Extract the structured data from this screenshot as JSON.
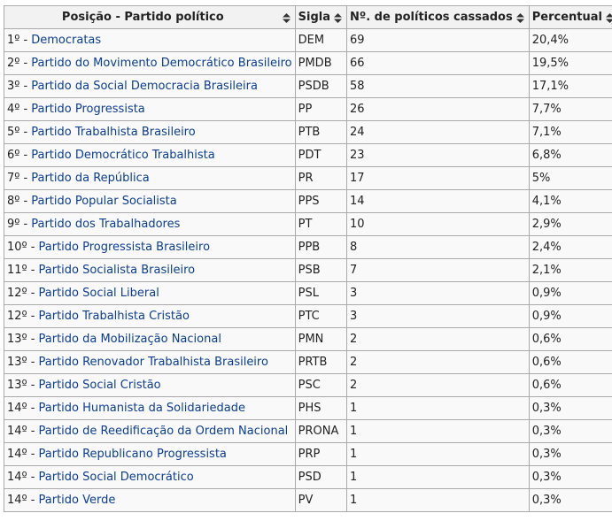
{
  "table": {
    "headers": [
      "Posição - Partido político",
      "Sigla",
      "Nº. de políticos cassados",
      "Percentual"
    ],
    "rows": [
      {
        "rank": "1º -",
        "party": "Democratas",
        "sigla": "DEM",
        "cassados": "69",
        "percentual": "20,4%"
      },
      {
        "rank": "2º -",
        "party": "Partido do Movimento Democrático Brasileiro",
        "sigla": "PMDB",
        "cassados": "66",
        "percentual": "19,5%"
      },
      {
        "rank": "3º -",
        "party": "Partido da Social Democracia Brasileira",
        "sigla": "PSDB",
        "cassados": "58",
        "percentual": "17,1%"
      },
      {
        "rank": "4º -",
        "party": "Partido Progressista",
        "sigla": "PP",
        "cassados": "26",
        "percentual": "7,7%"
      },
      {
        "rank": "5º -",
        "party": "Partido Trabalhista Brasileiro",
        "sigla": "PTB",
        "cassados": "24",
        "percentual": "7,1%"
      },
      {
        "rank": "6º -",
        "party": "Partido Democrático Trabalhista",
        "sigla": "PDT",
        "cassados": "23",
        "percentual": "6,8%"
      },
      {
        "rank": "7º -",
        "party": "Partido da República",
        "sigla": "PR",
        "cassados": "17",
        "percentual": "5%"
      },
      {
        "rank": "8º -",
        "party": "Partido Popular Socialista",
        "sigla": "PPS",
        "cassados": "14",
        "percentual": "4,1%"
      },
      {
        "rank": "9º -",
        "party": "Partido dos Trabalhadores",
        "sigla": "PT",
        "cassados": "10",
        "percentual": "2,9%"
      },
      {
        "rank": "10º -",
        "party": "Partido Progressista Brasileiro",
        "sigla": "PPB",
        "cassados": "8",
        "percentual": "2,4%"
      },
      {
        "rank": "11º -",
        "party": "Partido Socialista Brasileiro",
        "sigla": "PSB",
        "cassados": "7",
        "percentual": "2,1%"
      },
      {
        "rank": "12º -",
        "party": "Partido Social Liberal",
        "sigla": "PSL",
        "cassados": "3",
        "percentual": "0,9%"
      },
      {
        "rank": "12º -",
        "party": "Partido Trabalhista Cristão",
        "sigla": "PTC",
        "cassados": "3",
        "percentual": "0,9%"
      },
      {
        "rank": "13º -",
        "party": "Partido da Mobilização Nacional",
        "sigla": "PMN",
        "cassados": "2",
        "percentual": "0,6%"
      },
      {
        "rank": "13º -",
        "party": "Partido Renovador Trabalhista Brasileiro",
        "sigla": "PRTB",
        "cassados": "2",
        "percentual": "0,6%"
      },
      {
        "rank": "13º -",
        "party": "Partido Social Cristão",
        "sigla": "PSC",
        "cassados": "2",
        "percentual": "0,6%"
      },
      {
        "rank": "14º -",
        "party": "Partido Humanista da Solidariedade",
        "sigla": "PHS",
        "cassados": "1",
        "percentual": "0,3%"
      },
      {
        "rank": "14º -",
        "party": "Partido de Reedificação da Ordem Nacional",
        "sigla": "PRONA",
        "cassados": "1",
        "percentual": "0,3%"
      },
      {
        "rank": "14º -",
        "party": "Partido Republicano Progressista",
        "sigla": "PRP",
        "cassados": "1",
        "percentual": "0,3%"
      },
      {
        "rank": "14º -",
        "party": "Partido Social Democrático",
        "sigla": "PSD",
        "cassados": "1",
        "percentual": "0,3%"
      },
      {
        "rank": "14º -",
        "party": "Partido Verde",
        "sigla": "PV",
        "cassados": "1",
        "percentual": "0,3%"
      }
    ]
  }
}
